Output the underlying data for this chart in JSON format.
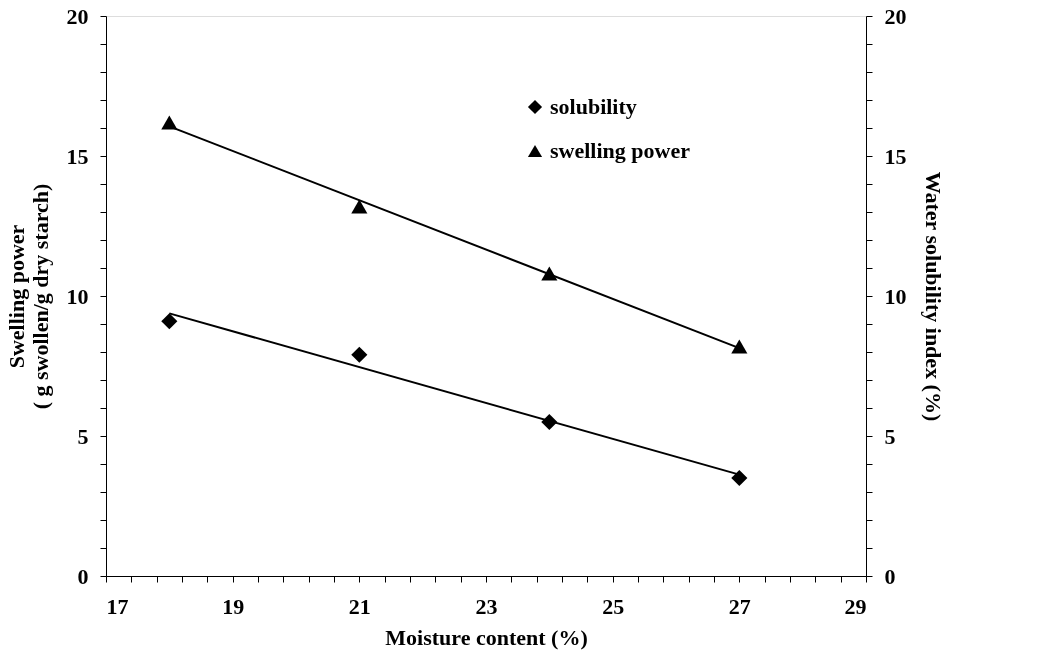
{
  "chart_data": {
    "type": "scatter",
    "xlabel": "Moisture content (%)",
    "ylabel": "Swelling power\n( g swollen/g dry starch)",
    "y2label": "Water solubility index (%)",
    "xlim": [
      17,
      29
    ],
    "xticks": [
      17,
      {
        "value": 17.4,
        "label": null
      },
      {
        "value": 17.8,
        "label": null
      },
      {
        "value": 18.2,
        "label": null
      },
      {
        "value": 18.6,
        "label": null
      },
      19,
      {
        "value": 19.4,
        "label": null
      },
      {
        "value": 19.8,
        "label": null
      },
      {
        "value": 20.2,
        "label": null
      },
      {
        "value": 20.6,
        "label": null
      },
      21,
      {
        "value": 21.4,
        "label": null
      },
      {
        "value": 21.8,
        "label": null
      },
      {
        "value": 22.2,
        "label": null
      },
      {
        "value": 22.6,
        "label": null
      },
      23,
      {
        "value": 23.4,
        "label": null
      },
      {
        "value": 23.8,
        "label": null
      },
      {
        "value": 24.2,
        "label": null
      },
      {
        "value": 24.6,
        "label": null
      },
      25,
      {
        "value": 25.4,
        "label": null
      },
      {
        "value": 25.8,
        "label": null
      },
      {
        "value": 26.2,
        "label": null
      },
      {
        "value": 26.6,
        "label": null
      },
      27,
      {
        "value": 27.4,
        "label": null
      },
      {
        "value": 27.8,
        "label": null
      },
      {
        "value": 28.2,
        "label": null
      },
      {
        "value": 28.6,
        "label": null
      },
      29
    ],
    "ylim": [
      0,
      20
    ],
    "yticks": [
      0,
      {
        "value": 1,
        "label": null
      },
      {
        "value": 2,
        "label": null
      },
      {
        "value": 3,
        "label": null
      },
      {
        "value": 4,
        "label": null
      },
      5,
      {
        "value": 6,
        "label": null
      },
      {
        "value": 7,
        "label": null
      },
      {
        "value": 8,
        "label": null
      },
      {
        "value": 9,
        "label": null
      },
      10,
      {
        "value": 11,
        "label": null
      },
      {
        "value": 12,
        "label": null
      },
      {
        "value": 13,
        "label": null
      },
      {
        "value": 14,
        "label": null
      },
      15,
      {
        "value": 16,
        "label": null
      },
      {
        "value": 17,
        "label": null
      },
      {
        "value": 18,
        "label": null
      },
      {
        "value": 19,
        "label": null
      },
      20
    ],
    "y2lim": [
      0,
      20
    ],
    "y2ticks": [
      0,
      {
        "value": 1,
        "label": null
      },
      {
        "value": 2,
        "label": null
      },
      {
        "value": 3,
        "label": null
      },
      {
        "value": 4,
        "label": null
      },
      5,
      {
        "value": 6,
        "label": null
      },
      {
        "value": 7,
        "label": null
      },
      {
        "value": 8,
        "label": null
      },
      {
        "value": 9,
        "label": null
      },
      10,
      {
        "value": 11,
        "label": null
      },
      {
        "value": 12,
        "label": null
      },
      {
        "value": 13,
        "label": null
      },
      {
        "value": 14,
        "label": null
      },
      15,
      {
        "value": 16,
        "label": null
      },
      {
        "value": 17,
        "label": null
      },
      {
        "value": 18,
        "label": null
      },
      {
        "value": 19,
        "label": null
      },
      20
    ],
    "grid": false,
    "legend": "top right",
    "series": [
      {
        "name": "solubility",
        "marker": "diamond",
        "axis": "y2",
        "color": "#000000",
        "x": [
          18,
          21,
          24,
          27
        ],
        "values": [
          9.1,
          7.9,
          5.5,
          3.5
        ]
      },
      {
        "name": "swelling power",
        "marker": "triangle",
        "color": "#000000",
        "x": [
          18,
          21,
          24,
          27
        ],
        "values": [
          16.2,
          13.2,
          10.8,
          8.2
        ]
      },
      {
        "type": "line",
        "marker": "none",
        "line_style": "solid",
        "axis": "y2",
        "color": "#000000",
        "x": [
          18,
          27
        ],
        "values": [
          9.38,
          3.62
        ]
      },
      {
        "type": "line",
        "marker": "none",
        "line_style": "solid",
        "color": "#000000",
        "x": [
          18,
          27
        ],
        "values": [
          16.06,
          8.14
        ]
      }
    ]
  }
}
